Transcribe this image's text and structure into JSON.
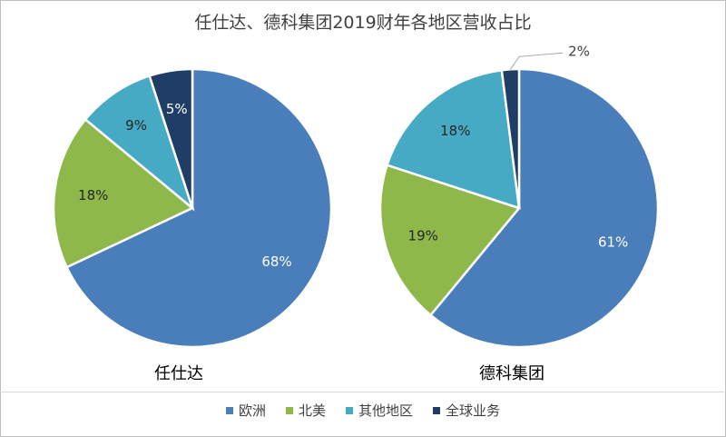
{
  "chart_data": {
    "type": "pie",
    "title": "任仕达、德科集团2019财年各地区营收占比",
    "categories": [
      "欧洲",
      "北美",
      "其他地区",
      "全球业务"
    ],
    "colors": [
      "#4a7ebb",
      "#8fb84b",
      "#46aac4",
      "#1f3d66"
    ],
    "legend": "bottom",
    "charts": [
      {
        "name": "任仕达",
        "values": [
          68,
          18,
          9,
          5
        ],
        "labels": [
          "68%",
          "18%",
          "9%",
          "5%"
        ]
      },
      {
        "name": "德科集团",
        "values": [
          61,
          19,
          18,
          2
        ],
        "labels": [
          "61%",
          "19%",
          "18%",
          "2%"
        ]
      }
    ]
  }
}
